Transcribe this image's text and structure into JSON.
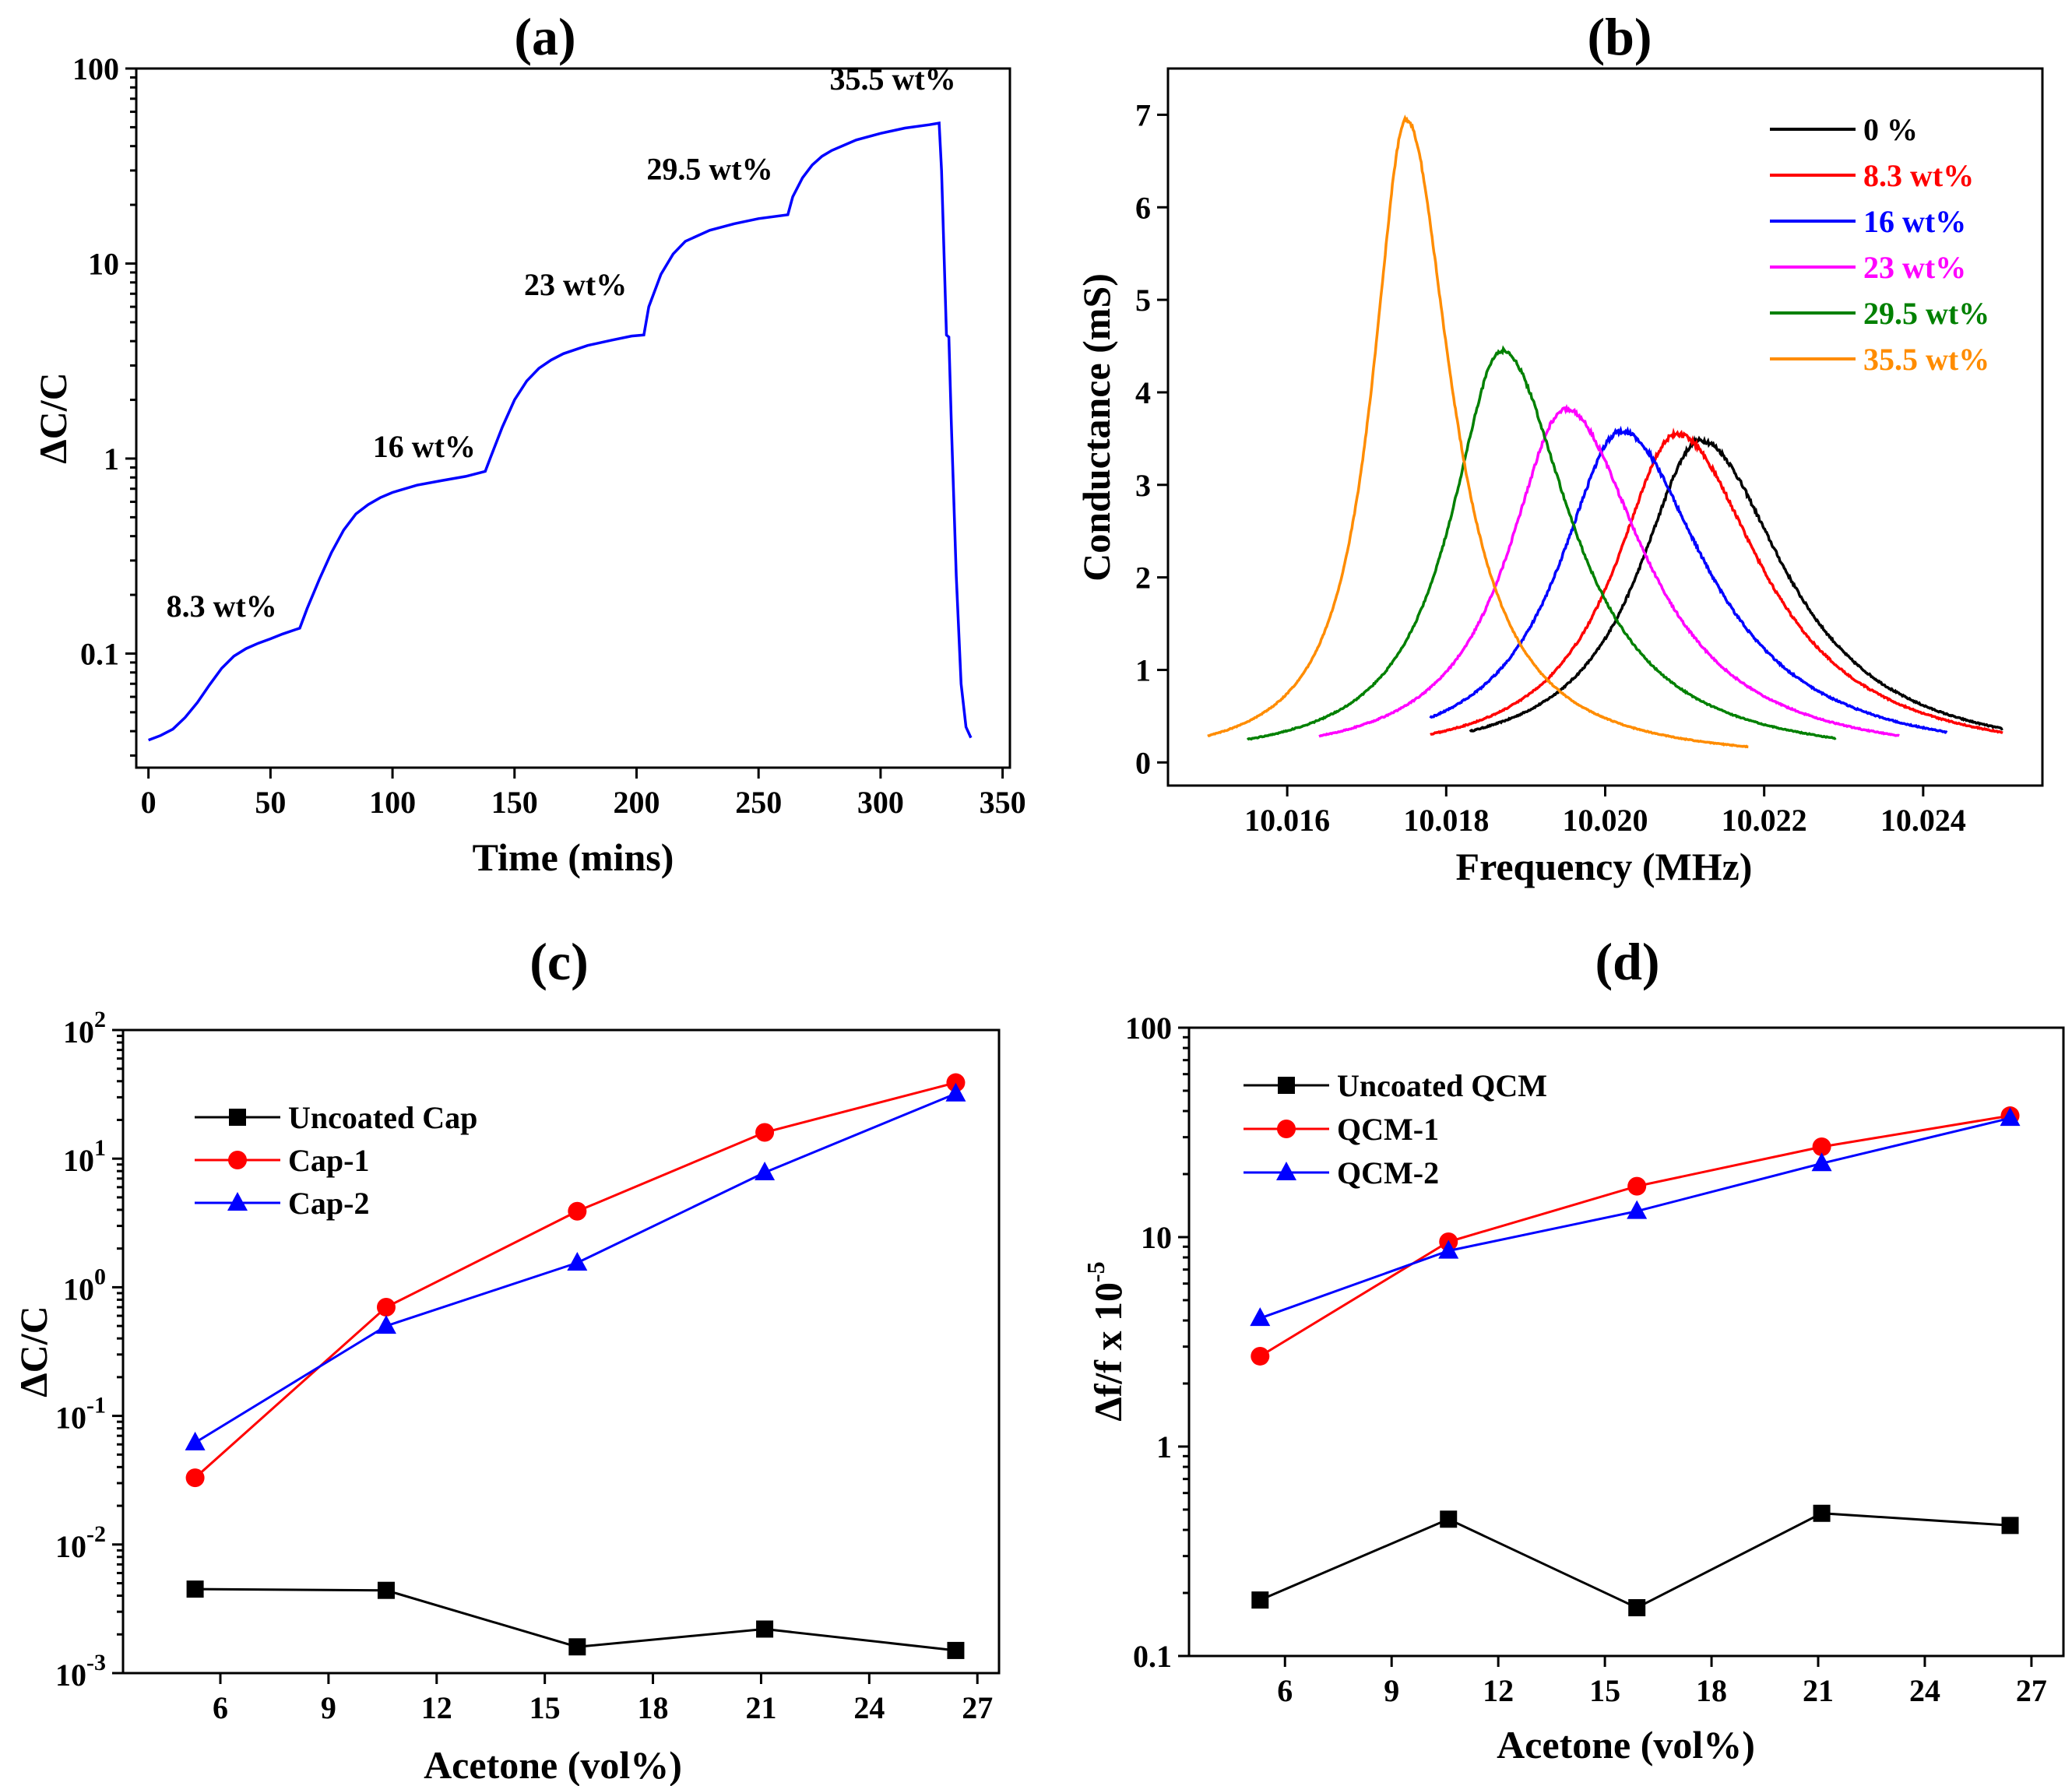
{
  "chart_data": [
    {
      "id": "a",
      "type": "line",
      "title": "(a)",
      "xlabel": "Time (mins)",
      "ylabel": "ΔC/C",
      "xlim": [
        -5,
        353
      ],
      "ylim": [
        0.026,
        100
      ],
      "yscale": "log",
      "xticks": [
        0,
        50,
        100,
        150,
        200,
        250,
        300,
        350
      ],
      "yticks": [
        {
          "value": 0.1,
          "label": "0.1"
        },
        {
          "value": 1,
          "label": "1"
        },
        {
          "value": 10,
          "label": "10"
        },
        {
          "value": 100,
          "label": "100"
        }
      ],
      "series": [
        {
          "name": "ΔC/C",
          "color": "#0000ff",
          "x": [
            0,
            5,
            10,
            15,
            20,
            25,
            30,
            35,
            40,
            45,
            50,
            55,
            62,
            65,
            70,
            75,
            80,
            85,
            90,
            95,
            100,
            110,
            120,
            130,
            138,
            140,
            145,
            150,
            155,
            160,
            165,
            170,
            180,
            190,
            198,
            203,
            205,
            210,
            215,
            220,
            230,
            240,
            250,
            262,
            264,
            268,
            272,
            276,
            280,
            290,
            300,
            310,
            320,
            324,
            325,
            327,
            328,
            329,
            331,
            333,
            335,
            337
          ],
          "y": [
            0.036,
            0.038,
            0.041,
            0.047,
            0.056,
            0.069,
            0.084,
            0.097,
            0.106,
            0.113,
            0.119,
            0.126,
            0.135,
            0.17,
            0.24,
            0.33,
            0.43,
            0.52,
            0.58,
            0.63,
            0.67,
            0.73,
            0.77,
            0.81,
            0.86,
            1.0,
            1.45,
            2.0,
            2.5,
            2.9,
            3.2,
            3.45,
            3.8,
            4.05,
            4.25,
            4.3,
            6.0,
            8.8,
            11.2,
            13.0,
            14.8,
            16.0,
            17.0,
            17.8,
            22.0,
            27.5,
            32.0,
            35.5,
            38.0,
            43.0,
            46.5,
            49.5,
            51.5,
            52.5,
            30.0,
            4.3,
            4.2,
            1.5,
            0.25,
            0.07,
            0.042,
            0.037
          ]
        }
      ],
      "annotations": [
        {
          "text": "8.3 wt%",
          "x": 30,
          "y": 0.155
        },
        {
          "text": "16 wt%",
          "x": 113,
          "y": 1.02
        },
        {
          "text": "23 wt%",
          "x": 175,
          "y": 6.9
        },
        {
          "text": "29.5 wt%",
          "x": 230,
          "y": 27
        },
        {
          "text": "35.5 wt%",
          "x": 305,
          "y": 78
        }
      ]
    },
    {
      "id": "b",
      "type": "line",
      "title": "(b)",
      "xlabel": "Frequency (MHz)",
      "ylabel": "Conductance (mS)",
      "xlim": [
        10.0145,
        10.0255
      ],
      "ylim": [
        -0.25,
        7.5
      ],
      "xticks": [
        {
          "value": 10.016,
          "label": "10.016"
        },
        {
          "value": 10.018,
          "label": "10.018"
        },
        {
          "value": 10.02,
          "label": "10.020"
        },
        {
          "value": 10.022,
          "label": "10.022"
        },
        {
          "value": 10.024,
          "label": "10.024"
        }
      ],
      "yticks": [
        0,
        1,
        2,
        3,
        4,
        5,
        6,
        7
      ],
      "legend_position": "top-right",
      "series": [
        {
          "name": "0 %",
          "color": "#000000",
          "f0": 10.0212,
          "peak": 3.48,
          "hw_left": 0.00095,
          "hw_right": 0.0013,
          "x_start": 10.0183,
          "x_end": 10.025
        },
        {
          "name": "8.3 wt%",
          "color": "#ff0000",
          "f0": 10.0209,
          "peak": 3.55,
          "hw_left": 0.00095,
          "hw_right": 0.0013,
          "x_start": 10.0178,
          "x_end": 10.025
        },
        {
          "name": "16 wt%",
          "color": "#0000ff",
          "f0": 10.0202,
          "peak": 3.58,
          "hw_left": 0.00095,
          "hw_right": 0.0013,
          "x_start": 10.0178,
          "x_end": 10.0243
        },
        {
          "name": "23 wt%",
          "color": "#ff00ff",
          "f0": 10.0195,
          "peak": 3.82,
          "hw_left": 0.00088,
          "hw_right": 0.0012,
          "x_start": 10.0164,
          "x_end": 10.0237
        },
        {
          "name": "29.5 wt%",
          "color": "#008000",
          "f0": 10.0187,
          "peak": 4.45,
          "hw_left": 0.00078,
          "hw_right": 0.00105,
          "x_start": 10.0155,
          "x_end": 10.0229
        },
        {
          "name": "35.5 wt%",
          "color": "#ff8c00",
          "f0": 10.0175,
          "peak": 6.95,
          "hw_left": 0.00052,
          "hw_right": 0.00068,
          "x_start": 10.015,
          "x_end": 10.0218
        }
      ]
    },
    {
      "id": "c",
      "type": "line",
      "title": "(c)",
      "xlabel": "Acetone (vol%)",
      "ylabel": "ΔC/C",
      "xlim": [
        3.3,
        27.6
      ],
      "ylim": [
        0.001,
        100
      ],
      "yscale": "log",
      "xticks": [
        6,
        9,
        12,
        15,
        18,
        21,
        24,
        27
      ],
      "yticks": [
        {
          "value": 0.001,
          "base": "10",
          "exp": "-3"
        },
        {
          "value": 0.01,
          "base": "10",
          "exp": "-2"
        },
        {
          "value": 0.1,
          "base": "10",
          "exp": "-1"
        },
        {
          "value": 1,
          "base": "10",
          "exp": "0"
        },
        {
          "value": 10,
          "base": "10",
          "exp": "1"
        },
        {
          "value": 100,
          "base": "10",
          "exp": "2"
        }
      ],
      "legend_position": "top-left",
      "x": [
        5.3,
        10.6,
        15.9,
        21.1,
        26.4
      ],
      "series": [
        {
          "name": "Uncoated Cap",
          "color": "#000000",
          "marker": "square",
          "values": [
            0.0045,
            0.0044,
            0.0016,
            0.0022,
            0.0015
          ]
        },
        {
          "name": "Cap-1",
          "color": "#ff0000",
          "marker": "circle",
          "values": [
            0.033,
            0.7,
            3.9,
            16,
            39
          ]
        },
        {
          "name": "Cap-2",
          "color": "#0000ff",
          "marker": "triangle",
          "values": [
            0.062,
            0.5,
            1.55,
            7.8,
            32
          ]
        }
      ]
    },
    {
      "id": "d",
      "type": "line",
      "title": "(d)",
      "xlabel": "Acetone (vol%)",
      "ylabel": "Δf/f x 10",
      "ylabel_exp": "-5",
      "xlim": [
        3.3,
        27.9
      ],
      "ylim": [
        0.1,
        100
      ],
      "yscale": "log",
      "xticks": [
        6,
        9,
        12,
        15,
        18,
        21,
        24,
        27
      ],
      "yticks": [
        {
          "value": 0.1,
          "label": "0.1"
        },
        {
          "value": 1,
          "label": "1"
        },
        {
          "value": 10,
          "label": "10"
        },
        {
          "value": 100,
          "label": "100"
        }
      ],
      "legend_position": "top-left",
      "x": [
        5.3,
        10.6,
        15.9,
        21.1,
        26.4
      ],
      "series": [
        {
          "name": "Uncoated QCM",
          "color": "#000000",
          "marker": "square",
          "values": [
            0.185,
            0.45,
            0.17,
            0.48,
            0.42
          ]
        },
        {
          "name": "QCM-1",
          "color": "#ff0000",
          "marker": "circle",
          "values": [
            2.7,
            9.5,
            17.5,
            27,
            38
          ]
        },
        {
          "name": "QCM-2",
          "color": "#0000ff",
          "marker": "triangle",
          "values": [
            4.1,
            8.6,
            13.3,
            22.5,
            37
          ]
        }
      ]
    }
  ]
}
